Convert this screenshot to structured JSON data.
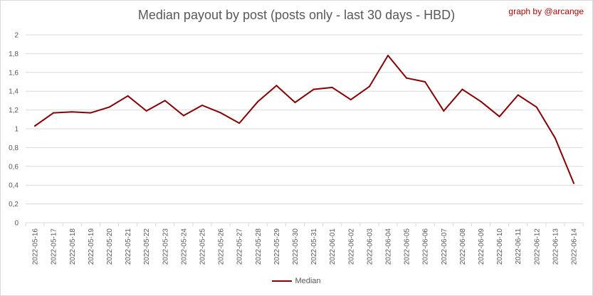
{
  "credit": "graph by @arcange",
  "chart_data": {
    "type": "line",
    "title": "Median payout by post (posts only - last 30 days - HBD)",
    "xlabel": "",
    "ylabel": "",
    "ylim": [
      0,
      2
    ],
    "yticks": [
      "0",
      "0,2",
      "0,4",
      "0,6",
      "0,8",
      "1",
      "1,2",
      "1,4",
      "1,6",
      "1,8",
      "2"
    ],
    "grid": true,
    "legend_position": "bottom",
    "colors": {
      "series": "#8b0000",
      "grid": "#d9d9d9",
      "text": "#595959",
      "credit": "#c00000"
    },
    "categories": [
      "2022-05-16",
      "2022-05-17",
      "2022-05-18",
      "2022-05-19",
      "2022-05-20",
      "2022-05-21",
      "2022-05-22",
      "2022-05-23",
      "2022-05-24",
      "2022-05-25",
      "2022-05-26",
      "2022-05-27",
      "2022-05-28",
      "2022-05-29",
      "2022-05-30",
      "2022-05-31",
      "2022-06-01",
      "2022-06-02",
      "2022-06-03",
      "2022-06-04",
      "2022-06-05",
      "2022-06-06",
      "2022-06-07",
      "2022-06-08",
      "2022-06-09",
      "2022-06-10",
      "2022-06-11",
      "2022-06-12",
      "2022-06-13",
      "2022-06-14"
    ],
    "series": [
      {
        "name": "Median",
        "values": [
          1.03,
          1.17,
          1.18,
          1.17,
          1.23,
          1.35,
          1.19,
          1.3,
          1.14,
          1.25,
          1.17,
          1.06,
          1.29,
          1.46,
          1.28,
          1.42,
          1.44,
          1.31,
          1.45,
          1.78,
          1.54,
          1.5,
          1.19,
          1.42,
          1.29,
          1.13,
          1.36,
          1.23,
          0.9,
          0.42
        ]
      }
    ]
  }
}
